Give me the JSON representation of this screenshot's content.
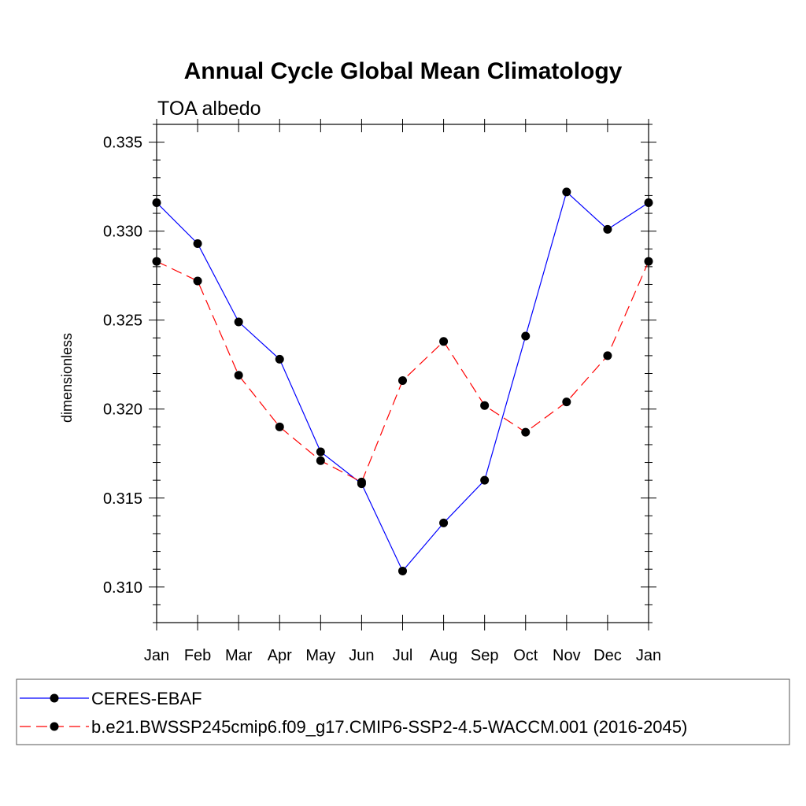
{
  "chart_data": {
    "type": "line",
    "title": "Annual Cycle Global Mean Climatology",
    "subtitle": "TOA albedo",
    "xlabel": "",
    "ylabel": "dimensionless",
    "categories": [
      "Jan",
      "Feb",
      "Mar",
      "Apr",
      "May",
      "Jun",
      "Jul",
      "Aug",
      "Sep",
      "Oct",
      "Nov",
      "Dec",
      "Jan"
    ],
    "ylim": [
      0.308,
      0.336
    ],
    "yticks": [
      "0.310",
      "0.315",
      "0.320",
      "0.325",
      "0.330",
      "0.335"
    ],
    "ytick_values": [
      0.31,
      0.315,
      0.32,
      0.325,
      0.33,
      0.335
    ],
    "grid": false,
    "legend_position": "bottom",
    "series": [
      {
        "name": "CERES-EBAF",
        "color": "#0000ff",
        "dashed": false,
        "values": [
          0.3316,
          0.3293,
          0.3249,
          0.3228,
          0.3176,
          0.3158,
          0.3109,
          0.3136,
          0.316,
          0.3241,
          0.3322,
          0.3301,
          0.3316
        ]
      },
      {
        "name": "b.e21.BWSSP245cmip6.f09_g17.CMIP6-SSP2-4.5-WACCM.001 (2016-2045)",
        "color": "#ff0000",
        "dashed": true,
        "values": [
          0.3283,
          0.3272,
          0.3219,
          0.319,
          0.3171,
          0.3159,
          0.3216,
          0.3238,
          0.3202,
          0.3187,
          0.3204,
          0.323,
          0.3283
        ]
      }
    ]
  }
}
